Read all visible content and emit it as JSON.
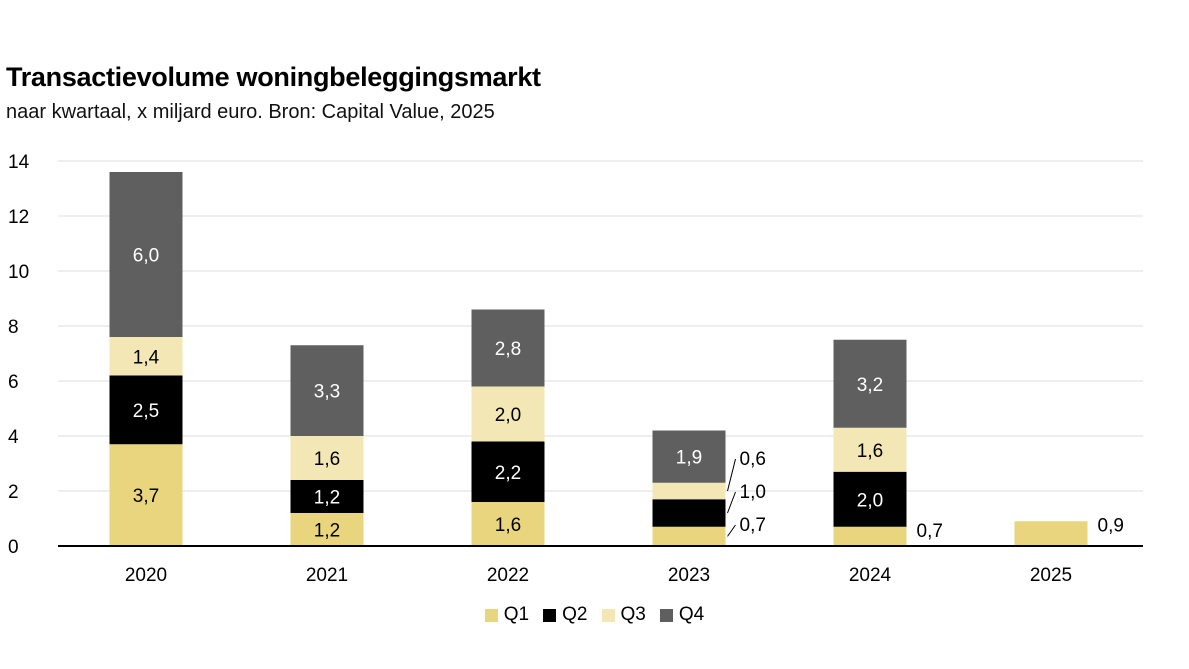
{
  "title": "Transactievolume woningbeleggingsmarkt",
  "subtitle": "naar kwartaal, x miljard euro. Bron: Capital Value, 2025",
  "colors": {
    "Q1": "#e9d57e",
    "Q2": "#000000",
    "Q3": "#f3e7b5",
    "Q4": "#5f5f5f",
    "grid": "#dddddd"
  },
  "chart_data": {
    "type": "bar",
    "stacked": true,
    "title": "Transactievolume woningbeleggingsmarkt",
    "subtitle": "naar kwartaal, x miljard euro. Bron: Capital Value, 2025",
    "xlabel": "",
    "ylabel": "",
    "ylim": [
      0,
      14
    ],
    "yticks": [
      0,
      2,
      4,
      6,
      8,
      10,
      12,
      14
    ],
    "grid": true,
    "legend_position": "bottom-center",
    "categories": [
      "2020",
      "2021",
      "2022",
      "2023",
      "2024",
      "2025"
    ],
    "series": [
      {
        "name": "Q1",
        "values": [
          3.7,
          1.2,
          1.6,
          0.7,
          0.7,
          0.9
        ],
        "labels": [
          "3,7",
          "1,2",
          "1,6",
          "0,7",
          "0,7",
          "0,9"
        ]
      },
      {
        "name": "Q2",
        "values": [
          2.5,
          1.2,
          2.2,
          1.0,
          2.0,
          null
        ],
        "labels": [
          "2,5",
          "1,2",
          "2,2",
          "1,0",
          "2,0",
          ""
        ]
      },
      {
        "name": "Q3",
        "values": [
          1.4,
          1.6,
          2.0,
          0.6,
          1.6,
          null
        ],
        "labels": [
          "1,4",
          "1,6",
          "2,0",
          "0,6",
          "1,6",
          ""
        ]
      },
      {
        "name": "Q4",
        "values": [
          6.0,
          3.3,
          2.8,
          1.9,
          3.2,
          null
        ],
        "labels": [
          "6,0",
          "3,3",
          "2,8",
          "1,9",
          "3,2",
          ""
        ]
      }
    ]
  }
}
